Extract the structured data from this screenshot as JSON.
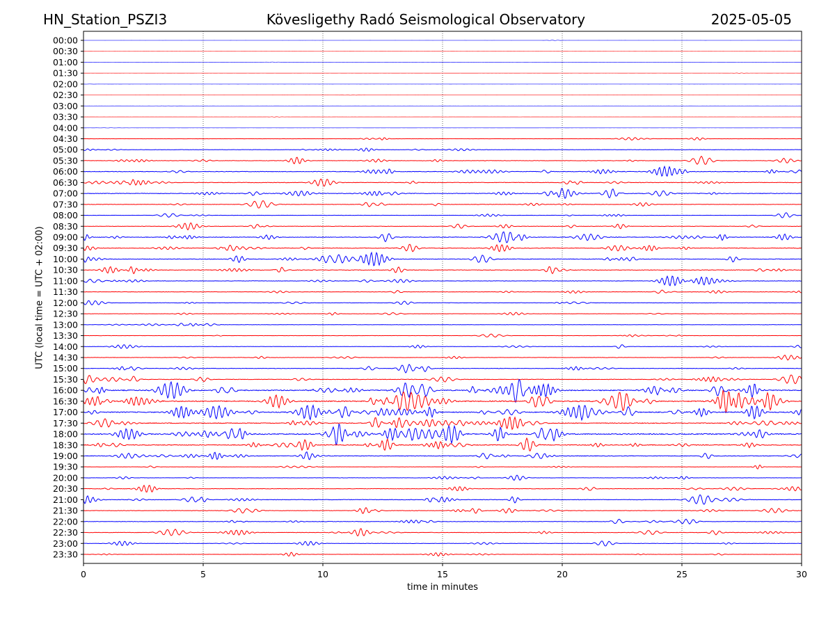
{
  "header": {
    "station": "HN_Station_PSZI3",
    "observatory": "Kövesligethy Radó Seismological Observatory",
    "date": "2025-05-05"
  },
  "chart_data": {
    "type": "line",
    "subtype": "helicorder",
    "xlabel": "time in minutes",
    "ylabel": "UTC (local time = UTC + 02:00)",
    "xlim": [
      0,
      30
    ],
    "xticks": [
      "0",
      "5",
      "10",
      "15",
      "20",
      "25",
      "30"
    ],
    "grid": "vertical dotted at x ticks",
    "colors": [
      "#0000ff",
      "#ff0000"
    ],
    "rows": [
      {
        "label": "00:00",
        "amp": 0.02
      },
      {
        "label": "00:30",
        "amp": 0.02
      },
      {
        "label": "01:00",
        "amp": 0.02
      },
      {
        "label": "01:30",
        "amp": 0.02
      },
      {
        "label": "02:00",
        "amp": 0.02
      },
      {
        "label": "02:30",
        "amp": 0.02
      },
      {
        "label": "03:00",
        "amp": 0.02
      },
      {
        "label": "03:30",
        "amp": 0.02
      },
      {
        "label": "04:00",
        "amp": 0.03
      },
      {
        "label": "04:30",
        "amp": 0.12
      },
      {
        "label": "05:00",
        "amp": 0.18
      },
      {
        "label": "05:30",
        "amp": 0.22
      },
      {
        "label": "06:00",
        "amp": 0.3
      },
      {
        "label": "06:30",
        "amp": 0.28
      },
      {
        "label": "07:00",
        "amp": 0.32
      },
      {
        "label": "07:30",
        "amp": 0.2
      },
      {
        "label": "08:00",
        "amp": 0.18
      },
      {
        "label": "08:30",
        "amp": 0.2
      },
      {
        "label": "09:00",
        "amp": 0.32
      },
      {
        "label": "09:30",
        "amp": 0.32
      },
      {
        "label": "10:00",
        "amp": 0.32
      },
      {
        "label": "10:30",
        "amp": 0.28
      },
      {
        "label": "11:00",
        "amp": 0.24
      },
      {
        "label": "11:30",
        "amp": 0.2
      },
      {
        "label": "12:00",
        "amp": 0.2
      },
      {
        "label": "12:30",
        "amp": 0.14
      },
      {
        "label": "13:00",
        "amp": 0.15
      },
      {
        "label": "13:30",
        "amp": 0.14
      },
      {
        "label": "14:00",
        "amp": 0.15
      },
      {
        "label": "14:30",
        "amp": 0.2
      },
      {
        "label": "15:00",
        "amp": 0.24
      },
      {
        "label": "15:30",
        "amp": 0.28
      },
      {
        "label": "16:00",
        "amp": 0.55
      },
      {
        "label": "16:30",
        "amp": 0.55
      },
      {
        "label": "17:00",
        "amp": 0.5
      },
      {
        "label": "17:30",
        "amp": 0.42
      },
      {
        "label": "18:00",
        "amp": 0.55
      },
      {
        "label": "18:30",
        "amp": 0.42
      },
      {
        "label": "19:00",
        "amp": 0.34
      },
      {
        "label": "19:30",
        "amp": 0.15
      },
      {
        "label": "20:00",
        "amp": 0.18
      },
      {
        "label": "20:30",
        "amp": 0.24
      },
      {
        "label": "21:00",
        "amp": 0.28
      },
      {
        "label": "21:30",
        "amp": 0.24
      },
      {
        "label": "22:00",
        "amp": 0.24
      },
      {
        "label": "22:30",
        "amp": 0.24
      },
      {
        "label": "23:00",
        "amp": 0.15
      },
      {
        "label": "23:30",
        "amp": 0.15
      }
    ]
  }
}
